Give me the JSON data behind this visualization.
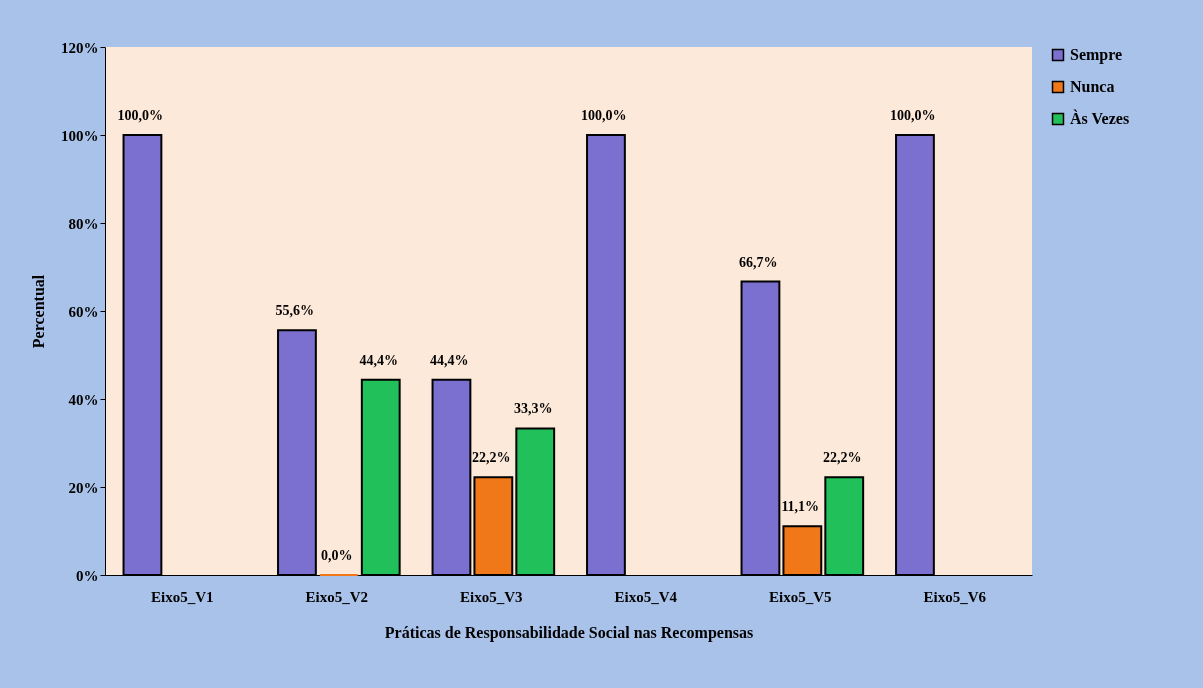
{
  "chart_data": {
    "type": "bar",
    "xlabel": "Práticas de Responsabilidade Social nas Recompensas",
    "ylabel": "Percentual",
    "categories": [
      "Eixo5_V1",
      "Eixo5_V2",
      "Eixo5_V3",
      "Eixo5_V4",
      "Eixo5_V5",
      "Eixo5_V6"
    ],
    "series": [
      {
        "name": "Sempre",
        "color": "#7b6fd0",
        "values": [
          100,
          55.6,
          44.4,
          100,
          66.7,
          100
        ],
        "value_labels": [
          "100,0%",
          "55,6%",
          "44,4%",
          "100,0%",
          "66,7%",
          "100,0%"
        ]
      },
      {
        "name": "Nunca",
        "color": "#f07818",
        "values": [
          null,
          0,
          22.2,
          null,
          11.1,
          null
        ],
        "value_labels": [
          null,
          "0,0%",
          "22,2%",
          null,
          "11,1%",
          null
        ]
      },
      {
        "name": "Às Vezes",
        "color": "#22c05a",
        "values": [
          null,
          44.4,
          33.3,
          null,
          22.2,
          null
        ],
        "value_labels": [
          null,
          "44,4%",
          "33,3%",
          null,
          "22,2%",
          null
        ]
      }
    ],
    "ylim": [
      0,
      120
    ],
    "yticks": [
      {
        "value": 0,
        "label": "0%"
      },
      {
        "value": 20,
        "label": "20%"
      },
      {
        "value": 40,
        "label": "40%"
      },
      {
        "value": 60,
        "label": "60%"
      },
      {
        "value": 80,
        "label": "80%"
      },
      {
        "value": 100,
        "label": "100%"
      },
      {
        "value": 120,
        "label": "120%"
      }
    ],
    "grid": false,
    "legend": "right"
  }
}
